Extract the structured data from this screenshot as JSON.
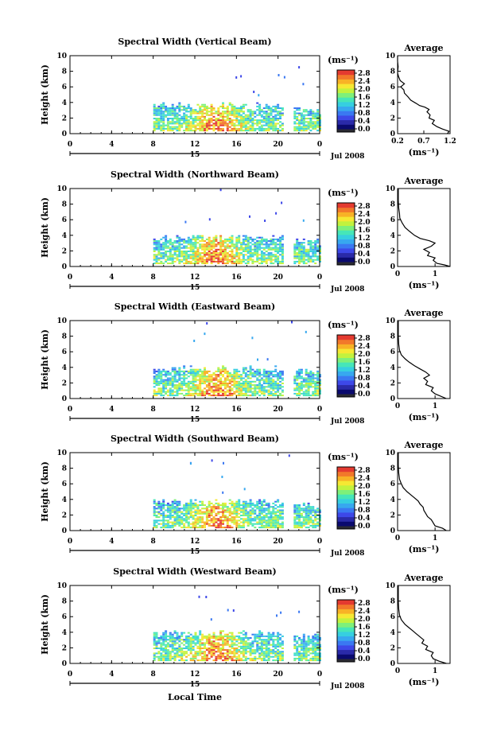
{
  "figure": {
    "xlabel": "Local Time",
    "date_label": "Jul 2008",
    "day_label": "15",
    "colorbar_unit": "(ms⁻¹)",
    "avg_title": "Average",
    "avg_xlabel": "(ms⁻¹)"
  },
  "colors": {
    "scale": [
      "#0a0a6e",
      "#2a2aa8",
      "#3d48e8",
      "#3a78f2",
      "#37a8ef",
      "#36cfe0",
      "#46e6b8",
      "#7ef07a",
      "#c2f23e",
      "#f6e833",
      "#f8b226",
      "#f2782a",
      "#e43a30"
    ],
    "empty": "#2a2a33"
  },
  "chart_data": [
    {
      "type": "heatmap",
      "title": "Spectral Width (Vertical Beam)",
      "ylabel": "Height (km)",
      "xlabel": "",
      "x_unit": "local time (h)",
      "xlim": [
        0,
        24
      ],
      "ylim": [
        0,
        10
      ],
      "xticks": [
        "0",
        "4",
        "8",
        "12",
        "16",
        "20",
        "0"
      ],
      "yticks": [
        "0",
        "2",
        "4",
        "6",
        "8",
        "10"
      ],
      "colorbar": {
        "label": "(ms⁻¹)",
        "ticks": [
          "0.0",
          "0.4",
          "0.8",
          "1.2",
          "1.6",
          "2.0",
          "2.4",
          "2.8"
        ],
        "range": [
          0,
          2.8
        ]
      },
      "coverage": [
        {
          "t_start": 8.0,
          "t_end": 20.5,
          "h_bottom": 0.3,
          "h_top": 3.5
        },
        {
          "t_start": 21.5,
          "t_end": 24.0,
          "h_bottom": 0.3,
          "h_top": 3.0
        }
      ],
      "profile": {
        "title": "Average",
        "xlabel": "(ms⁻¹)",
        "xticks": [
          "0.2",
          "0.7",
          "1.2"
        ],
        "xlim": [
          0.2,
          1.2
        ],
        "yticks": [
          "0",
          "2",
          "4",
          "6",
          "8",
          "10"
        ],
        "ylim": [
          0,
          10
        ],
        "points": [
          [
            1.15,
            0.0
          ],
          [
            1.18,
            0.3
          ],
          [
            1.05,
            0.6
          ],
          [
            0.95,
            0.9
          ],
          [
            0.86,
            1.3
          ],
          [
            0.9,
            1.7
          ],
          [
            0.8,
            2.0
          ],
          [
            0.82,
            2.4
          ],
          [
            0.76,
            2.8
          ],
          [
            0.8,
            3.1
          ],
          [
            0.72,
            3.4
          ],
          [
            0.62,
            3.6
          ],
          [
            0.55,
            3.9
          ],
          [
            0.45,
            4.3
          ],
          [
            0.4,
            4.7
          ],
          [
            0.33,
            5.2
          ],
          [
            0.32,
            5.6
          ],
          [
            0.26,
            6.0
          ],
          [
            0.33,
            6.4
          ],
          [
            0.25,
            6.8
          ],
          [
            0.22,
            7.3
          ],
          [
            0.2,
            7.8
          ],
          [
            0.21,
            8.6
          ],
          [
            0.2,
            9.3
          ],
          [
            0.2,
            10.0
          ]
        ]
      }
    },
    {
      "type": "heatmap",
      "title": "Spectral Width (Northward Beam)",
      "ylabel": "Height (km)",
      "xlabel": "",
      "x_unit": "local time (h)",
      "xlim": [
        0,
        24
      ],
      "ylim": [
        0,
        10
      ],
      "xticks": [
        "0",
        "4",
        "8",
        "12",
        "16",
        "20",
        "0"
      ],
      "yticks": [
        "0",
        "2",
        "4",
        "6",
        "8",
        "10"
      ],
      "colorbar": {
        "label": "(ms⁻¹)",
        "ticks": [
          "0.0",
          "0.4",
          "0.8",
          "1.2",
          "1.6",
          "2.0",
          "2.4",
          "2.8"
        ],
        "range": [
          0,
          2.8
        ]
      },
      "coverage": [
        {
          "t_start": 8.0,
          "t_end": 20.5,
          "h_bottom": 0.3,
          "h_top": 3.6
        },
        {
          "t_start": 21.5,
          "t_end": 24.0,
          "h_bottom": 0.3,
          "h_top": 3.2
        }
      ],
      "profile": {
        "title": "Average",
        "xlabel": "(ms⁻¹)",
        "xticks": [
          "0",
          "1"
        ],
        "xlim": [
          0,
          1.4
        ],
        "yticks": [
          "0",
          "2",
          "4",
          "6",
          "8",
          "10"
        ],
        "ylim": [
          0,
          10
        ],
        "points": [
          [
            1.4,
            0.0
          ],
          [
            1.25,
            0.2
          ],
          [
            1.05,
            0.4
          ],
          [
            0.95,
            0.8
          ],
          [
            1.0,
            1.1
          ],
          [
            0.8,
            1.4
          ],
          [
            0.85,
            1.8
          ],
          [
            0.7,
            2.2
          ],
          [
            0.9,
            2.6
          ],
          [
            1.0,
            3.0
          ],
          [
            0.85,
            3.3
          ],
          [
            0.6,
            3.6
          ],
          [
            0.45,
            4.0
          ],
          [
            0.32,
            4.5
          ],
          [
            0.2,
            5.0
          ],
          [
            0.12,
            5.6
          ],
          [
            0.06,
            6.2
          ],
          [
            0.05,
            6.8
          ],
          [
            0.03,
            7.5
          ],
          [
            0.02,
            8.5
          ],
          [
            0.02,
            10.0
          ]
        ]
      }
    },
    {
      "type": "heatmap",
      "title": "Spectral Width (Eastward Beam)",
      "ylabel": "Height (km)",
      "xlabel": "",
      "x_unit": "local time (h)",
      "xlim": [
        0,
        24
      ],
      "ylim": [
        0,
        10
      ],
      "xticks": [
        "0",
        "4",
        "8",
        "12",
        "16",
        "20",
        "0"
      ],
      "yticks": [
        "0",
        "2",
        "4",
        "6",
        "8",
        "10"
      ],
      "colorbar": {
        "label": "(ms⁻¹)",
        "ticks": [
          "0.0",
          "0.4",
          "0.8",
          "1.2",
          "1.6",
          "2.0",
          "2.4",
          "2.8"
        ],
        "range": [
          0,
          2.8
        ]
      },
      "coverage": [
        {
          "t_start": 8.0,
          "t_end": 20.5,
          "h_bottom": 0.3,
          "h_top": 3.7
        },
        {
          "t_start": 21.5,
          "t_end": 24.0,
          "h_bottom": 0.3,
          "h_top": 3.3
        }
      ],
      "profile": {
        "title": "Average",
        "xlabel": "(ms⁻¹)",
        "xticks": [
          "0",
          "1"
        ],
        "xlim": [
          0,
          1.4
        ],
        "yticks": [
          "0",
          "2",
          "4",
          "6",
          "8",
          "10"
        ],
        "ylim": [
          0,
          10
        ],
        "points": [
          [
            1.3,
            0.0
          ],
          [
            1.15,
            0.3
          ],
          [
            1.0,
            0.6
          ],
          [
            0.9,
            1.0
          ],
          [
            0.95,
            1.4
          ],
          [
            0.75,
            1.8
          ],
          [
            0.8,
            2.2
          ],
          [
            0.7,
            2.6
          ],
          [
            0.85,
            3.0
          ],
          [
            0.75,
            3.4
          ],
          [
            0.6,
            3.8
          ],
          [
            0.45,
            4.2
          ],
          [
            0.3,
            4.7
          ],
          [
            0.2,
            5.1
          ],
          [
            0.1,
            5.6
          ],
          [
            0.05,
            6.2
          ],
          [
            0.03,
            7.0
          ],
          [
            0.02,
            8.0
          ],
          [
            0.02,
            10.0
          ]
        ]
      }
    },
    {
      "type": "heatmap",
      "title": "Spectral Width (Southward Beam)",
      "ylabel": "Height (km)",
      "xlabel": "",
      "x_unit": "local time (h)",
      "xlim": [
        0,
        24
      ],
      "ylim": [
        0,
        10
      ],
      "xticks": [
        "0",
        "4",
        "8",
        "12",
        "16",
        "20",
        "0"
      ],
      "yticks": [
        "0",
        "2",
        "4",
        "6",
        "8",
        "10"
      ],
      "colorbar": {
        "label": "(ms⁻¹)",
        "ticks": [
          "0.0",
          "0.4",
          "0.8",
          "1.2",
          "1.6",
          "2.0",
          "2.4",
          "2.8"
        ],
        "range": [
          0,
          2.8
        ]
      },
      "coverage": [
        {
          "t_start": 8.0,
          "t_end": 20.5,
          "h_bottom": 0.3,
          "h_top": 3.6
        },
        {
          "t_start": 21.5,
          "t_end": 24.0,
          "h_bottom": 0.3,
          "h_top": 3.2
        }
      ],
      "profile": {
        "title": "Average",
        "xlabel": "(ms⁻¹)",
        "xticks": [
          "0",
          "1"
        ],
        "xlim": [
          0,
          1.4
        ],
        "yticks": [
          "0",
          "2",
          "4",
          "6",
          "8",
          "10"
        ],
        "ylim": [
          0,
          10
        ],
        "points": [
          [
            1.3,
            0.0
          ],
          [
            1.2,
            0.3
          ],
          [
            1.0,
            0.6
          ],
          [
            0.95,
            1.0
          ],
          [
            0.9,
            1.4
          ],
          [
            0.8,
            1.8
          ],
          [
            0.75,
            2.2
          ],
          [
            0.7,
            2.6
          ],
          [
            0.68,
            3.0
          ],
          [
            0.6,
            3.4
          ],
          [
            0.55,
            3.8
          ],
          [
            0.45,
            4.2
          ],
          [
            0.35,
            4.6
          ],
          [
            0.25,
            5.0
          ],
          [
            0.15,
            5.5
          ],
          [
            0.1,
            6.0
          ],
          [
            0.05,
            6.6
          ],
          [
            0.03,
            7.4
          ],
          [
            0.02,
            8.4
          ],
          [
            0.02,
            10.0
          ]
        ]
      }
    },
    {
      "type": "heatmap",
      "title": "Spectral Width (Westward Beam)",
      "ylabel": "Height (km)",
      "xlabel": "Local Time",
      "x_unit": "local time (h)",
      "xlim": [
        0,
        24
      ],
      "ylim": [
        0,
        10
      ],
      "xticks": [
        "0",
        "4",
        "8",
        "12",
        "16",
        "20",
        "0"
      ],
      "yticks": [
        "0",
        "2",
        "4",
        "6",
        "8",
        "10"
      ],
      "colorbar": {
        "label": "(ms⁻¹)",
        "ticks": [
          "0.0",
          "0.4",
          "0.8",
          "1.2",
          "1.6",
          "2.0",
          "2.4",
          "2.8"
        ],
        "range": [
          0,
          2.8
        ]
      },
      "coverage": [
        {
          "t_start": 8.0,
          "t_end": 20.5,
          "h_bottom": 0.3,
          "h_top": 3.8
        },
        {
          "t_start": 21.5,
          "t_end": 24.0,
          "h_bottom": 0.3,
          "h_top": 3.3
        }
      ],
      "profile": {
        "title": "Average",
        "xlabel": "(ms⁻¹)",
        "xticks": [
          "0",
          "1"
        ],
        "xlim": [
          0,
          1.4
        ],
        "yticks": [
          "0",
          "2",
          "4",
          "6",
          "8",
          "10"
        ],
        "ylim": [
          0,
          10
        ],
        "points": [
          [
            1.3,
            0.0
          ],
          [
            1.1,
            0.3
          ],
          [
            0.95,
            0.6
          ],
          [
            0.9,
            1.0
          ],
          [
            0.95,
            1.4
          ],
          [
            0.75,
            1.8
          ],
          [
            0.8,
            2.2
          ],
          [
            0.65,
            2.6
          ],
          [
            0.7,
            3.0
          ],
          [
            0.6,
            3.4
          ],
          [
            0.5,
            3.8
          ],
          [
            0.4,
            4.2
          ],
          [
            0.3,
            4.6
          ],
          [
            0.2,
            5.0
          ],
          [
            0.1,
            5.6
          ],
          [
            0.05,
            6.2
          ],
          [
            0.03,
            7.0
          ],
          [
            0.02,
            8.0
          ],
          [
            0.02,
            10.0
          ]
        ]
      }
    }
  ]
}
